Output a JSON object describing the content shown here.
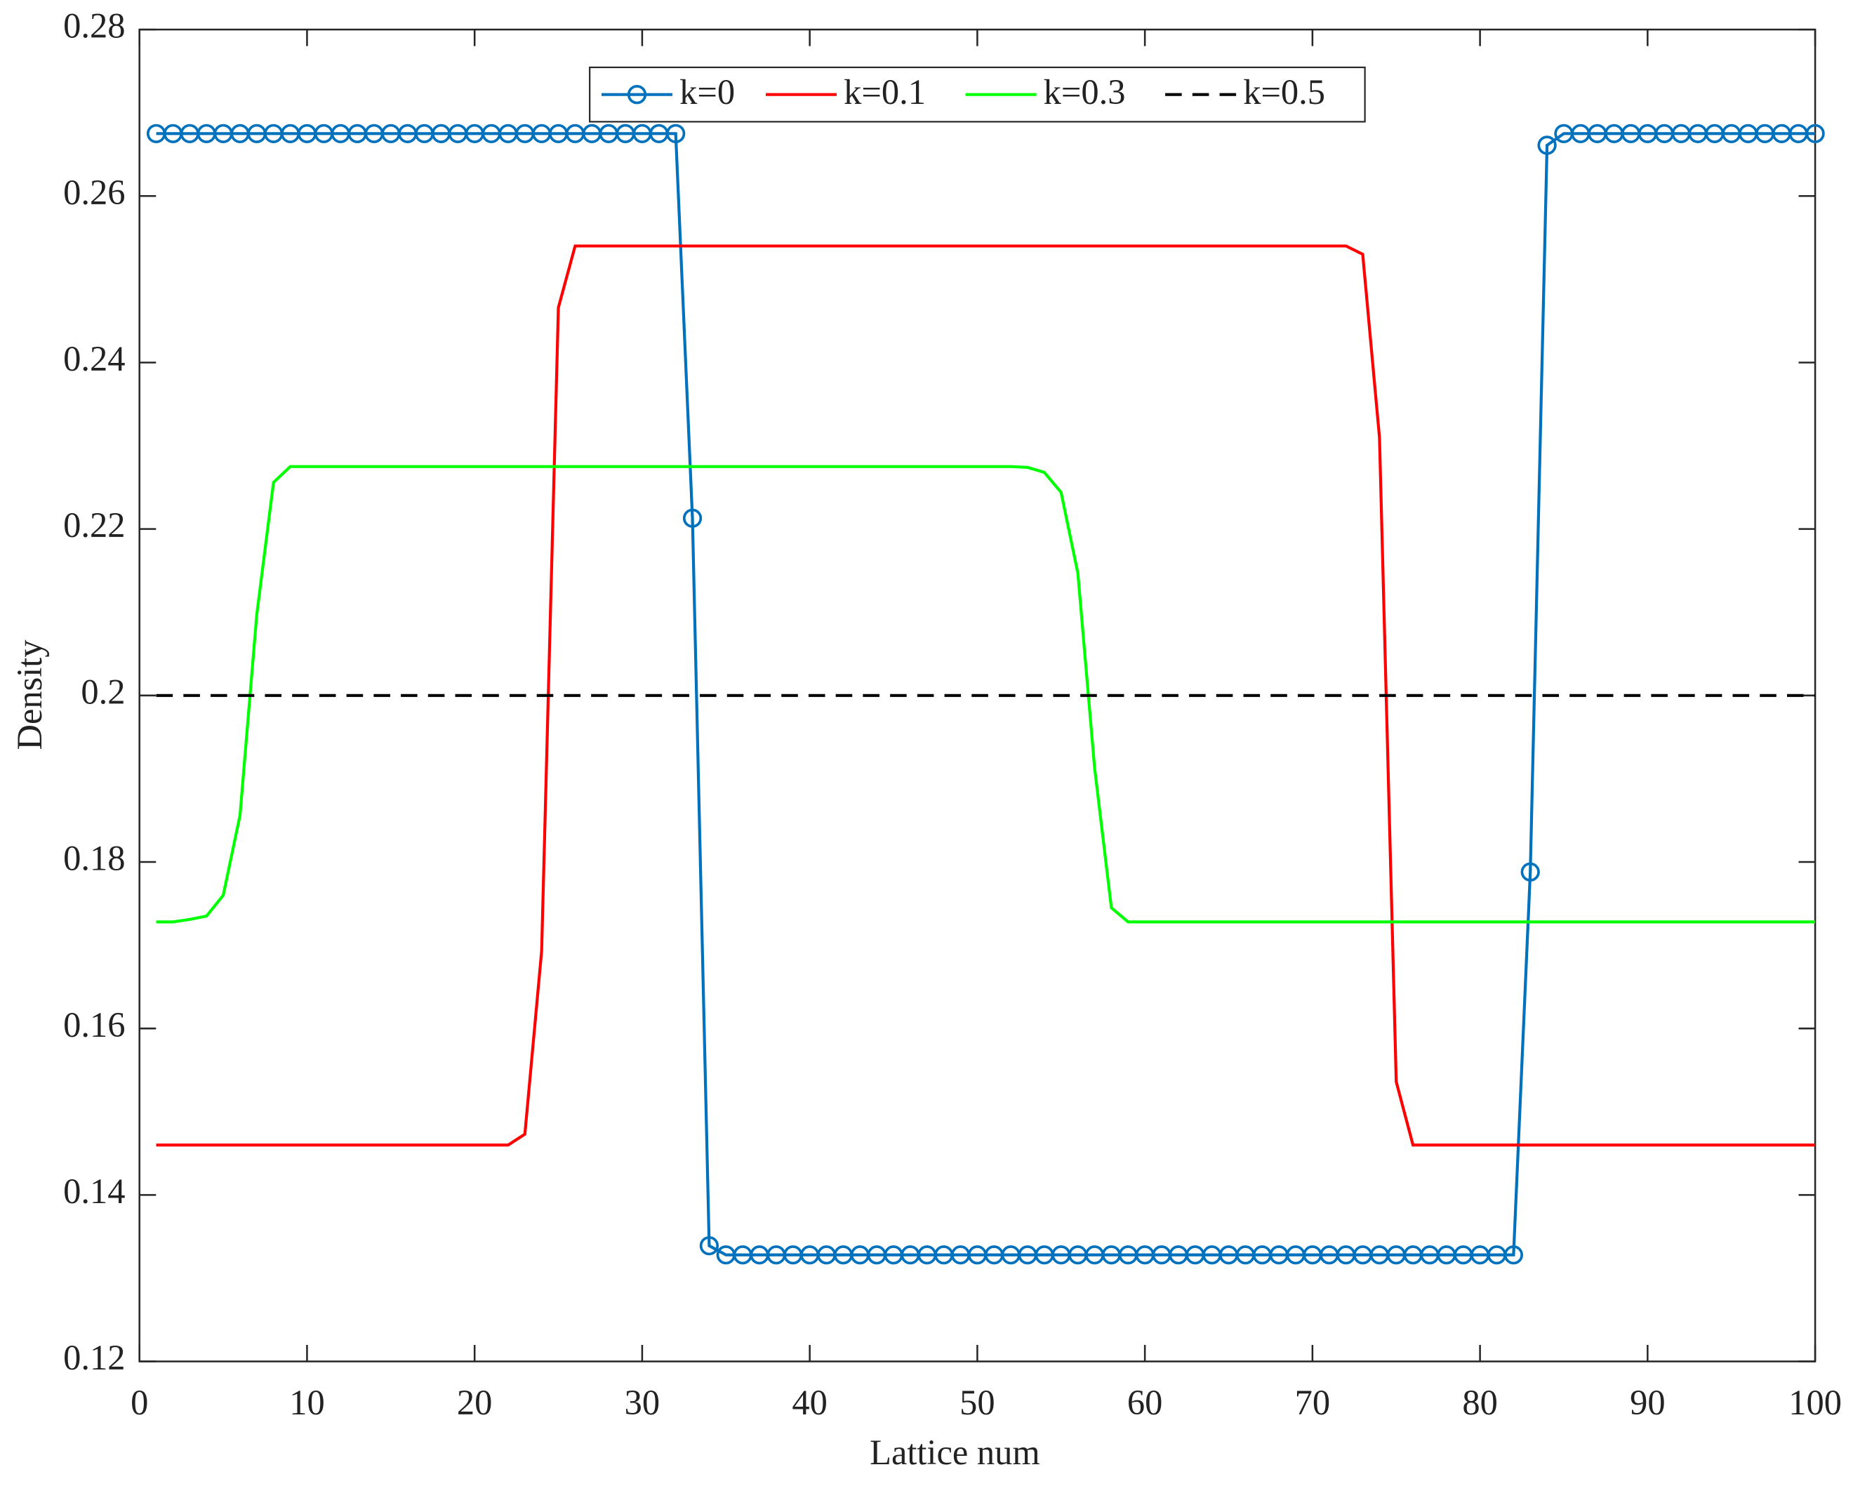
{
  "chart_data": {
    "type": "line",
    "xlabel": "Lattice num",
    "ylabel": "Density",
    "x": [
      1,
      2,
      3,
      4,
      5,
      6,
      7,
      8,
      9,
      10,
      11,
      12,
      13,
      14,
      15,
      16,
      17,
      18,
      19,
      20,
      21,
      22,
      23,
      24,
      25,
      26,
      27,
      28,
      29,
      30,
      31,
      32,
      33,
      34,
      35,
      36,
      37,
      38,
      39,
      40,
      41,
      42,
      43,
      44,
      45,
      46,
      47,
      48,
      49,
      50,
      51,
      52,
      53,
      54,
      55,
      56,
      57,
      58,
      59,
      60,
      61,
      62,
      63,
      64,
      65,
      66,
      67,
      68,
      69,
      70,
      71,
      72,
      73,
      74,
      75,
      76,
      77,
      78,
      79,
      80,
      81,
      82,
      83,
      84,
      85,
      86,
      87,
      88,
      89,
      90,
      91,
      92,
      93,
      94,
      95,
      96,
      97,
      98,
      99,
      100
    ],
    "xlim": [
      0,
      100
    ],
    "xticks": [
      0,
      10,
      20,
      30,
      40,
      50,
      60,
      70,
      80,
      90,
      100
    ],
    "ylim": [
      0.12,
      0.28
    ],
    "yticks": [
      0.12,
      0.14,
      0.16,
      0.18,
      0.2,
      0.22,
      0.24,
      0.26,
      0.28
    ],
    "grid": false,
    "legend": "top",
    "series": [
      {
        "name": "k=0",
        "color": "#0072bd",
        "marker": "o",
        "linestyle": "solid",
        "values": [
          0.2675,
          0.2675,
          0.2675,
          0.2675,
          0.2675,
          0.2675,
          0.2675,
          0.2675,
          0.2675,
          0.2675,
          0.2675,
          0.2675,
          0.2675,
          0.2675,
          0.2675,
          0.2675,
          0.2675,
          0.2675,
          0.2675,
          0.2675,
          0.2675,
          0.2675,
          0.2675,
          0.2675,
          0.2675,
          0.2675,
          0.2675,
          0.2675,
          0.2675,
          0.2675,
          0.2675,
          0.2675,
          0.2213,
          0.1339,
          0.1328,
          0.1328,
          0.1328,
          0.1328,
          0.1328,
          0.1328,
          0.1328,
          0.1328,
          0.1328,
          0.1328,
          0.1328,
          0.1328,
          0.1328,
          0.1328,
          0.1328,
          0.1328,
          0.1328,
          0.1328,
          0.1328,
          0.1328,
          0.1328,
          0.1328,
          0.1328,
          0.1328,
          0.1328,
          0.1328,
          0.1328,
          0.1328,
          0.1328,
          0.1328,
          0.1328,
          0.1328,
          0.1328,
          0.1328,
          0.1328,
          0.1328,
          0.1328,
          0.1328,
          0.1328,
          0.1328,
          0.1328,
          0.1328,
          0.1328,
          0.1328,
          0.1328,
          0.1328,
          0.1328,
          0.1328,
          0.1788,
          0.2661,
          0.2675,
          0.2675,
          0.2675,
          0.2675,
          0.2675,
          0.2675,
          0.2675,
          0.2675,
          0.2675,
          0.2675,
          0.2675,
          0.2675,
          0.2675,
          0.2675,
          0.2675,
          0.2675
        ]
      },
      {
        "name": "k=0.1",
        "color": "#ff0000",
        "linestyle": "solid",
        "values": [
          0.146,
          0.146,
          0.146,
          0.146,
          0.146,
          0.146,
          0.146,
          0.146,
          0.146,
          0.146,
          0.146,
          0.146,
          0.146,
          0.146,
          0.146,
          0.146,
          0.146,
          0.146,
          0.146,
          0.146,
          0.146,
          0.146,
          0.1473,
          0.1693,
          0.2466,
          0.254,
          0.254,
          0.254,
          0.254,
          0.254,
          0.254,
          0.254,
          0.254,
          0.254,
          0.254,
          0.254,
          0.254,
          0.254,
          0.254,
          0.254,
          0.254,
          0.254,
          0.254,
          0.254,
          0.254,
          0.254,
          0.254,
          0.254,
          0.254,
          0.254,
          0.254,
          0.254,
          0.254,
          0.254,
          0.254,
          0.254,
          0.254,
          0.254,
          0.254,
          0.254,
          0.254,
          0.254,
          0.254,
          0.254,
          0.254,
          0.254,
          0.254,
          0.254,
          0.254,
          0.254,
          0.254,
          0.254,
          0.253,
          0.231,
          0.1536,
          0.146,
          0.146,
          0.146,
          0.146,
          0.146,
          0.146,
          0.146,
          0.146,
          0.146,
          0.146,
          0.146,
          0.146,
          0.146,
          0.146,
          0.146,
          0.146,
          0.146,
          0.146,
          0.146,
          0.146,
          0.146,
          0.146,
          0.146,
          0.146,
          0.146
        ]
      },
      {
        "name": "k=0.3",
        "color": "#00ff00",
        "linestyle": "solid",
        "values": [
          0.1728,
          0.1728,
          0.1731,
          0.1735,
          0.176,
          0.1856,
          0.2097,
          0.2256,
          0.2275,
          0.2275,
          0.2275,
          0.2275,
          0.2275,
          0.2275,
          0.2275,
          0.2275,
          0.2275,
          0.2275,
          0.2275,
          0.2275,
          0.2275,
          0.2275,
          0.2275,
          0.2275,
          0.2275,
          0.2275,
          0.2275,
          0.2275,
          0.2275,
          0.2275,
          0.2275,
          0.2275,
          0.2275,
          0.2275,
          0.2275,
          0.2275,
          0.2275,
          0.2275,
          0.2275,
          0.2275,
          0.2275,
          0.2275,
          0.2275,
          0.2275,
          0.2275,
          0.2275,
          0.2275,
          0.2275,
          0.2275,
          0.2275,
          0.2275,
          0.2275,
          0.2274,
          0.2268,
          0.2244,
          0.2147,
          0.1913,
          0.1745,
          0.1728,
          0.1728,
          0.1728,
          0.1728,
          0.1728,
          0.1728,
          0.1728,
          0.1728,
          0.1728,
          0.1728,
          0.1728,
          0.1728,
          0.1728,
          0.1728,
          0.1728,
          0.1728,
          0.1728,
          0.1728,
          0.1728,
          0.1728,
          0.1728,
          0.1728,
          0.1728,
          0.1728,
          0.1728,
          0.1728,
          0.1728,
          0.1728,
          0.1728,
          0.1728,
          0.1728,
          0.1728,
          0.1728,
          0.1728,
          0.1728,
          0.1728,
          0.1728,
          0.1728,
          0.1728,
          0.1728,
          0.1728,
          0.1728
        ]
      },
      {
        "name": "k=0.5",
        "color": "#000000",
        "linestyle": "dashed",
        "values": [
          0.2,
          0.2,
          0.2,
          0.2,
          0.2,
          0.2,
          0.2,
          0.2,
          0.2,
          0.2,
          0.2,
          0.2,
          0.2,
          0.2,
          0.2,
          0.2,
          0.2,
          0.2,
          0.2,
          0.2,
          0.2,
          0.2,
          0.2,
          0.2,
          0.2,
          0.2,
          0.2,
          0.2,
          0.2,
          0.2,
          0.2,
          0.2,
          0.2,
          0.2,
          0.2,
          0.2,
          0.2,
          0.2,
          0.2,
          0.2,
          0.2,
          0.2,
          0.2,
          0.2,
          0.2,
          0.2,
          0.2,
          0.2,
          0.2,
          0.2,
          0.2,
          0.2,
          0.2,
          0.2,
          0.2,
          0.2,
          0.2,
          0.2,
          0.2,
          0.2,
          0.2,
          0.2,
          0.2,
          0.2,
          0.2,
          0.2,
          0.2,
          0.2,
          0.2,
          0.2,
          0.2,
          0.2,
          0.2,
          0.2,
          0.2,
          0.2,
          0.2,
          0.2,
          0.2,
          0.2,
          0.2,
          0.2,
          0.2,
          0.2,
          0.2,
          0.2,
          0.2,
          0.2,
          0.2,
          0.2,
          0.2,
          0.2,
          0.2,
          0.2,
          0.2,
          0.2,
          0.2,
          0.2,
          0.2,
          0.2
        ]
      }
    ]
  }
}
